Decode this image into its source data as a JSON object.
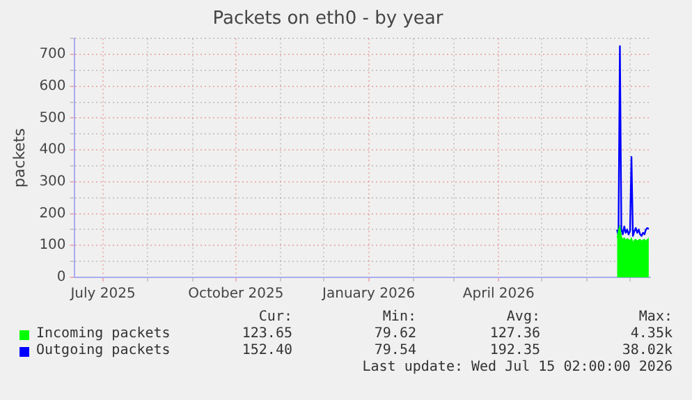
{
  "chart_data": {
    "type": "line",
    "title": "Packets on eth0 - by year",
    "ylabel": "packets",
    "x": [
      "2026-06-22",
      "2026-06-23",
      "2026-06-24",
      "2026-06-25",
      "2026-06-26",
      "2026-06-27",
      "2026-06-28",
      "2026-06-29",
      "2026-06-30",
      "2026-07-01",
      "2026-07-02",
      "2026-07-03",
      "2026-07-04",
      "2026-07-05",
      "2026-07-06",
      "2026-07-07",
      "2026-07-08",
      "2026-07-09",
      "2026-07-10",
      "2026-07-11",
      "2026-07-12",
      "2026-07-13",
      "2026-07-14"
    ],
    "series": [
      {
        "name": "Incoming packets",
        "type": "area",
        "color": "#00ff00",
        "values": [
          125,
          150,
          163,
          130,
          120,
          125,
          118,
          122,
          120,
          115,
          125,
          110,
          118,
          120,
          115,
          118,
          120,
          115,
          118,
          120,
          115,
          120,
          124
        ]
      },
      {
        "name": "Outgoing packets",
        "type": "line",
        "color": "#0000ff",
        "values": [
          150,
          130,
          726,
          150,
          135,
          160,
          140,
          150,
          135,
          145,
          378,
          130,
          145,
          155,
          140,
          150,
          135,
          130,
          140,
          135,
          150,
          155,
          152
        ]
      }
    ],
    "xlim": [
      "2025-06-11",
      "2026-07-15"
    ],
    "xticks": [
      {
        "value": "2025-07-01",
        "label": "July 2025"
      },
      {
        "value": "2025-08-01",
        "label": null
      },
      {
        "value": "2025-09-01",
        "label": null
      },
      {
        "value": "2025-10-01",
        "label": "October 2025"
      },
      {
        "value": "2025-11-01",
        "label": null
      },
      {
        "value": "2025-12-01",
        "label": null
      },
      {
        "value": "2026-01-01",
        "label": "January 2026"
      },
      {
        "value": "2026-02-01",
        "label": null
      },
      {
        "value": "2026-03-01",
        "label": null
      },
      {
        "value": "2026-04-01",
        "label": "April 2026"
      },
      {
        "value": "2026-05-01",
        "label": null
      },
      {
        "value": "2026-06-01",
        "label": null
      },
      {
        "value": "2026-07-01",
        "label": null
      }
    ],
    "ylim": [
      0,
      750
    ],
    "yticks": [
      0,
      {
        "value": 50,
        "label": null
      },
      100,
      {
        "value": 150,
        "label": null
      },
      200,
      {
        "value": 250,
        "label": null
      },
      300,
      {
        "value": 350,
        "label": null
      },
      400,
      {
        "value": 450,
        "label": null
      },
      500,
      {
        "value": 550,
        "label": null
      },
      600,
      {
        "value": 650,
        "label": null
      },
      700,
      {
        "value": 750,
        "label": null
      }
    ],
    "grid": true,
    "legend": "bottom",
    "annotations": [
      "Cur:",
      "Min:",
      "Avg:",
      "Max:",
      "123.65",
      "79.62",
      "127.36",
      "4.35k",
      "152.40",
      "79.54",
      "192.35",
      "38.02k",
      "Last update: Wed Jul 15 02:00:00 2026"
    ]
  }
}
